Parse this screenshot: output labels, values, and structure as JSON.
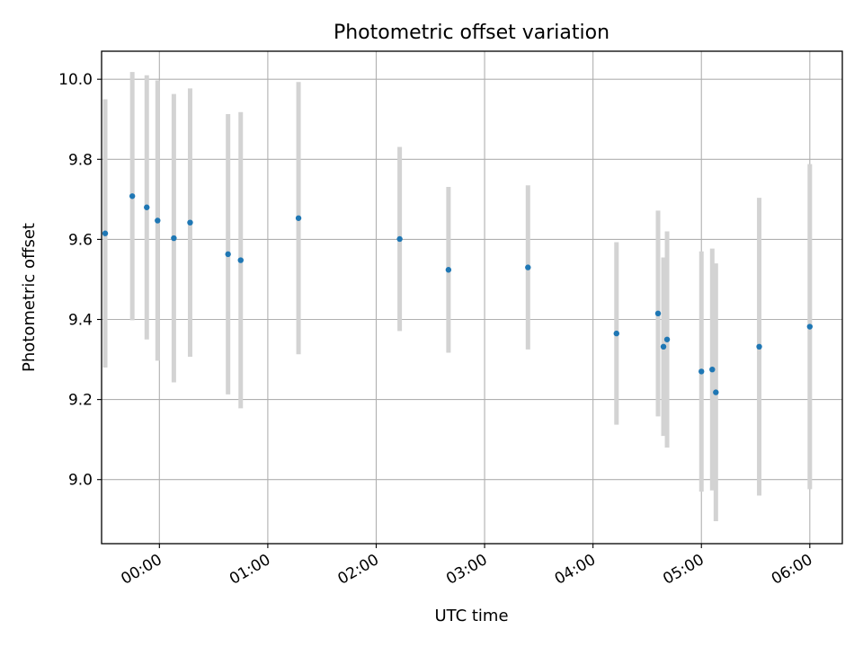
{
  "chart_data": {
    "type": "scatter",
    "title": "Photometric offset variation",
    "xlabel": "UTC time",
    "ylabel": "Photometric offset",
    "x_tick_labels": [
      "00:00",
      "01:00",
      "02:00",
      "03:00",
      "04:00",
      "05:00",
      "06:00"
    ],
    "y_tick_labels": [
      "9.0",
      "9.2",
      "9.4",
      "9.6",
      "9.8",
      "10.0"
    ],
    "xlim": [
      "23:28",
      "06:18"
    ],
    "ylim": [
      8.84,
      10.07
    ],
    "grid": true,
    "marker_color": "#1f77b4",
    "errorbar_color": "#d3d3d3",
    "series": [
      {
        "points": [
          {
            "x": "23:30",
            "y": 9.615,
            "err": 0.335
          },
          {
            "x": "23:45",
            "y": 9.708,
            "err": 0.31
          },
          {
            "x": "23:53",
            "y": 9.68,
            "err": 0.33
          },
          {
            "x": "23:59",
            "y": 9.647,
            "err": 0.35
          },
          {
            "x": "00:08",
            "y": 9.603,
            "err": 0.36
          },
          {
            "x": "00:17",
            "y": 9.642,
            "err": 0.335
          },
          {
            "x": "00:38",
            "y": 9.563,
            "err": 0.35
          },
          {
            "x": "00:45",
            "y": 9.548,
            "err": 0.37
          },
          {
            "x": "01:17",
            "y": 9.653,
            "err": 0.34
          },
          {
            "x": "02:13",
            "y": 9.601,
            "err": 0.23
          },
          {
            "x": "02:40",
            "y": 9.524,
            "err": 0.207
          },
          {
            "x": "03:24",
            "y": 9.53,
            "err": 0.205
          },
          {
            "x": "04:13",
            "y": 9.365,
            "err": 0.228
          },
          {
            "x": "04:36",
            "y": 9.415,
            "err": 0.257
          },
          {
            "x": "04:39",
            "y": 9.332,
            "err": 0.223
          },
          {
            "x": "04:41",
            "y": 9.35,
            "err": 0.27
          },
          {
            "x": "05:00",
            "y": 9.27,
            "err": 0.3
          },
          {
            "x": "05:06",
            "y": 9.275,
            "err": 0.302
          },
          {
            "x": "05:08",
            "y": 9.218,
            "err": 0.322
          },
          {
            "x": "05:32",
            "y": 9.332,
            "err": 0.372
          },
          {
            "x": "06:00",
            "y": 9.382,
            "err": 0.406
          }
        ]
      }
    ]
  }
}
